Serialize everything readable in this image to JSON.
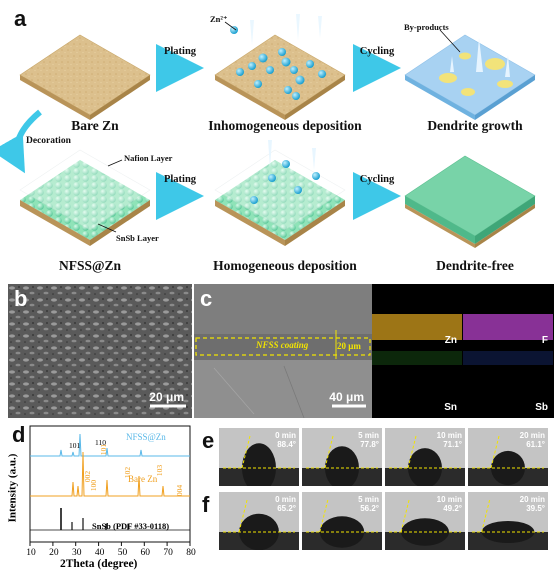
{
  "panel_a": {
    "label": "a",
    "row1": {
      "captions": [
        "Bare Zn",
        "Inhomogeneous deposition",
        "Dendrite growth"
      ],
      "arrows": [
        "Plating",
        "Cycling"
      ],
      "zn_ion_label": "Zn²⁺",
      "byproducts_label": "By-products"
    },
    "decoration_label": "Decoration",
    "row2": {
      "captions": [
        "NFSS@Zn",
        "Homogeneous deposition",
        "Dendrite-free"
      ],
      "arrows": [
        "Plating",
        "Cycling"
      ],
      "nafion_label": "Nafion Layer",
      "snsb_label": "SnSb Layer"
    }
  },
  "panel_b": {
    "label": "b",
    "scale_bar": "20 μm"
  },
  "panel_c": {
    "label": "c",
    "coating_label": "NFSS coating",
    "thickness_label": "20 μm",
    "scale_bar": "40 μm",
    "maps": [
      {
        "element": "Zn",
        "color": "#b88a1a"
      },
      {
        "element": "F",
        "color": "#a03ab0"
      },
      {
        "element": "Sn",
        "color": "#2f9a2a"
      },
      {
        "element": "Sb",
        "color": "#2a4ec8"
      }
    ]
  },
  "panel_d": {
    "label": "d",
    "xlabel": "2Theta (degree)",
    "ylabel": "Intensity (a.u.)",
    "xticks": [
      "10",
      "20",
      "30",
      "40",
      "50",
      "60",
      "70",
      "80"
    ],
    "series": [
      "NFSS@Zn",
      "Bare Zn",
      "SnSb (PDF #33-0118)"
    ],
    "peaks_top": [
      "101",
      "110"
    ],
    "peaks_bare": [
      "002",
      "100",
      "101",
      "102",
      "103",
      "004"
    ]
  },
  "panel_e": {
    "label": "e",
    "frames": [
      {
        "time": "0 min",
        "angle": "88.4°"
      },
      {
        "time": "5 min",
        "angle": "77.8°"
      },
      {
        "time": "10 min",
        "angle": "71.1°"
      },
      {
        "time": "20 min",
        "angle": "61.1°"
      }
    ]
  },
  "panel_f": {
    "label": "f",
    "frames": [
      {
        "time": "0 min",
        "angle": "65.2°"
      },
      {
        "time": "5 min",
        "angle": "56.2°"
      },
      {
        "time": "10 min",
        "angle": "49.2°"
      },
      {
        "time": "20 min",
        "angle": "39.5°"
      }
    ]
  }
}
